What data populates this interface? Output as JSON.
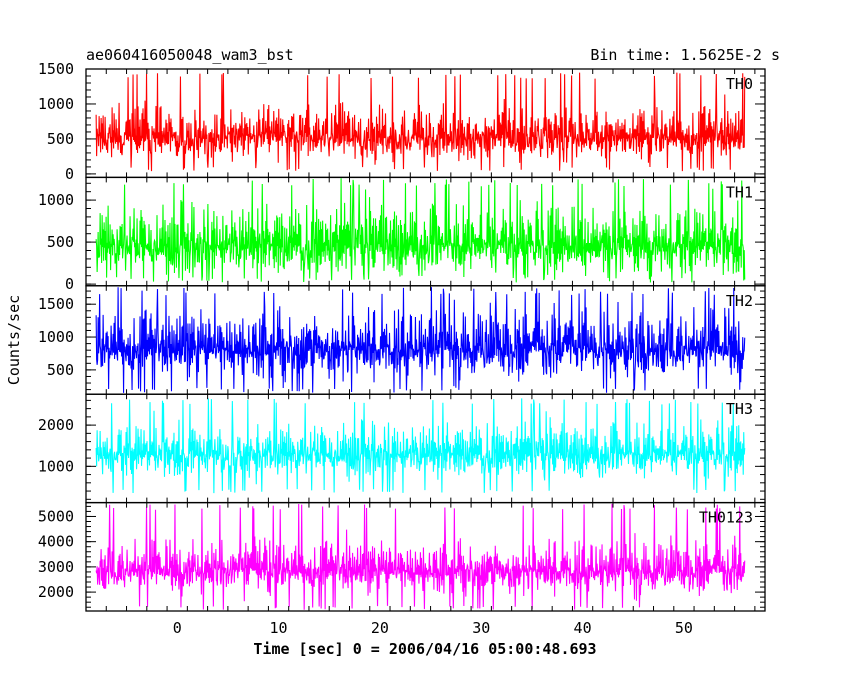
{
  "chart_data": {
    "type": "line",
    "title": "ae060416050048_wam3_bst",
    "subtitle": "Bin time: 1.5625E-2 s",
    "xlabel": "Time [sec] 0 = 2006/04/16 05:00:48.693",
    "ylabel": "Counts/sec",
    "xlim": [
      -9,
      58
    ],
    "x_start": -8,
    "x_end": 56,
    "bin_time": 0.015625,
    "xticks": [
      0,
      10,
      20,
      30,
      40,
      50
    ],
    "grid": false,
    "legend": "none",
    "panels": [
      {
        "name": "TH0",
        "color": "#ff0000",
        "ylim": [
          -50,
          1500
        ],
        "yticks": [
          0,
          500,
          1000,
          1500
        ],
        "ytick_labels": [
          "0",
          "500",
          "1000",
          "1500"
        ],
        "mean": 620,
        "spread": 300,
        "min": 40,
        "max": 1450
      },
      {
        "name": "TH1",
        "color": "#00ff00",
        "ylim": [
          -20,
          1270
        ],
        "yticks": [
          0,
          500,
          1000
        ],
        "ytick_labels": [
          "0",
          "500",
          "1000"
        ],
        "mean": 560,
        "spread": 320,
        "min": 20,
        "max": 1260
      },
      {
        "name": "TH2",
        "color": "#0000ff",
        "ylim": [
          130,
          1780
        ],
        "yticks": [
          500,
          1000,
          1500
        ],
        "ytick_labels": [
          "500",
          "1000",
          "1500"
        ],
        "mean": 950,
        "spread": 400,
        "min": 150,
        "max": 1760
      },
      {
        "name": "TH3",
        "color": "#00ffff",
        "ylim": [
          120,
          2750
        ],
        "yticks": [
          1000,
          2000
        ],
        "ytick_labels": [
          "1000",
          "2000"
        ],
        "mean": 1450,
        "spread": 500,
        "min": 350,
        "max": 2650
      },
      {
        "name": "TH0123",
        "color": "#ff00ff",
        "ylim": [
          1250,
          5550
        ],
        "yticks": [
          2000,
          3000,
          4000,
          5000
        ],
        "ytick_labels": [
          "2000",
          "3000",
          "4000",
          "5000"
        ],
        "mean": 3100,
        "spread": 800,
        "min": 1300,
        "max": 5500
      }
    ]
  }
}
